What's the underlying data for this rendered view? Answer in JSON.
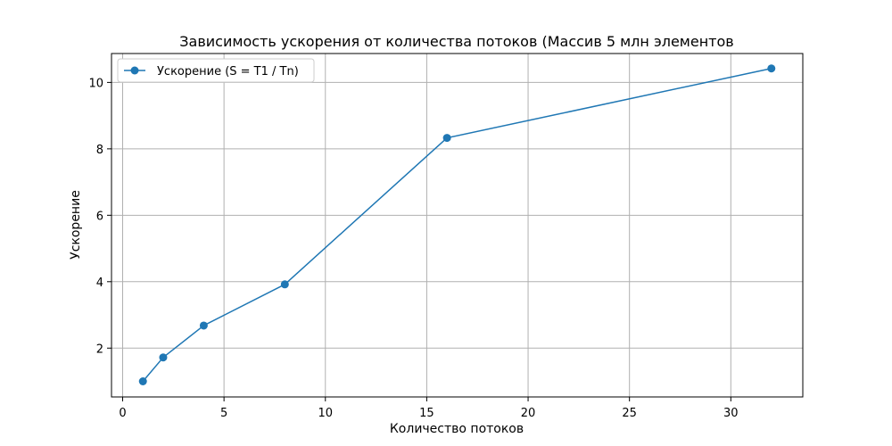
{
  "chart_data": {
    "type": "line",
    "title": "Зависимость ускорения от количества потоков (Массив 5 млн элементов",
    "xlabel": "Количество потоков",
    "ylabel": "Ускорение",
    "xlim": [
      -0.55,
      33.55
    ],
    "ylim": [
      0.53,
      10.87
    ],
    "xticks": [
      0,
      5,
      10,
      15,
      20,
      25,
      30
    ],
    "yticks": [
      2,
      4,
      6,
      8,
      10
    ],
    "grid": true,
    "legend": "upper-left",
    "series": [
      {
        "name": "Ускорение (S = T1 / Tn)",
        "color": "#1f77b4",
        "marker": "circle",
        "x": [
          1,
          2,
          4,
          8,
          16,
          32
        ],
        "y": [
          1.0,
          1.72,
          2.68,
          3.92,
          8.33,
          10.42
        ]
      }
    ]
  }
}
